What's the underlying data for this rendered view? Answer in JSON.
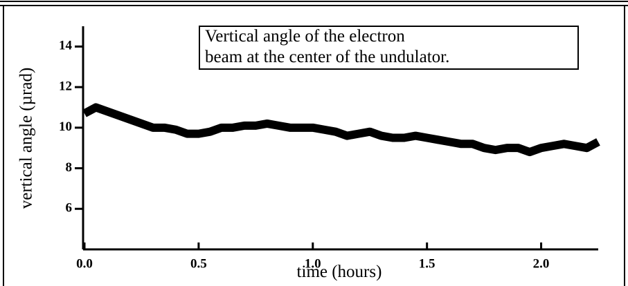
{
  "chart_data": {
    "type": "line",
    "annotations": [
      "Vertical angle of the electron",
      "beam at the center of the undulator."
    ],
    "x_label": "time (hours)",
    "y_label": "vertical angle (µrad)",
    "x": [
      0,
      0.05,
      0.1,
      0.15,
      0.2,
      0.25,
      0.3,
      0.35,
      0.4,
      0.45,
      0.5,
      0.55,
      0.6,
      0.65,
      0.7,
      0.75,
      0.8,
      0.85,
      0.9,
      0.95,
      1.0,
      1.05,
      1.1,
      1.15,
      1.2,
      1.25,
      1.3,
      1.35,
      1.4,
      1.45,
      1.5,
      1.55,
      1.6,
      1.65,
      1.7,
      1.75,
      1.8,
      1.85,
      1.9,
      1.95,
      2.0,
      2.05,
      2.1,
      2.15,
      2.2,
      2.25
    ],
    "series": [
      {
        "color": "#000000",
        "values": [
          10.7,
          11.0,
          10.8,
          10.6,
          10.4,
          10.2,
          10.0,
          10.0,
          9.9,
          9.7,
          9.7,
          9.8,
          10.0,
          10.0,
          10.1,
          10.1,
          10.2,
          10.1,
          10.0,
          10.0,
          10.0,
          9.9,
          9.8,
          9.6,
          9.7,
          9.8,
          9.6,
          9.5,
          9.5,
          9.6,
          9.5,
          9.4,
          9.3,
          9.2,
          9.2,
          9.0,
          8.9,
          9.0,
          9.0,
          8.8,
          9.0,
          9.1,
          9.2,
          9.1,
          9.0,
          9.3
        ]
      }
    ],
    "xlim": [
      0,
      2.25
    ],
    "ylim": [
      4,
      15
    ],
    "xticks": [
      {
        "value": 0,
        "label": "0.0"
      },
      0.5,
      {
        "value": 1,
        "label": "1.0"
      },
      1.5,
      {
        "value": 2,
        "label": "2.0"
      }
    ],
    "yticks": [
      6,
      8,
      10,
      12,
      14
    ]
  }
}
